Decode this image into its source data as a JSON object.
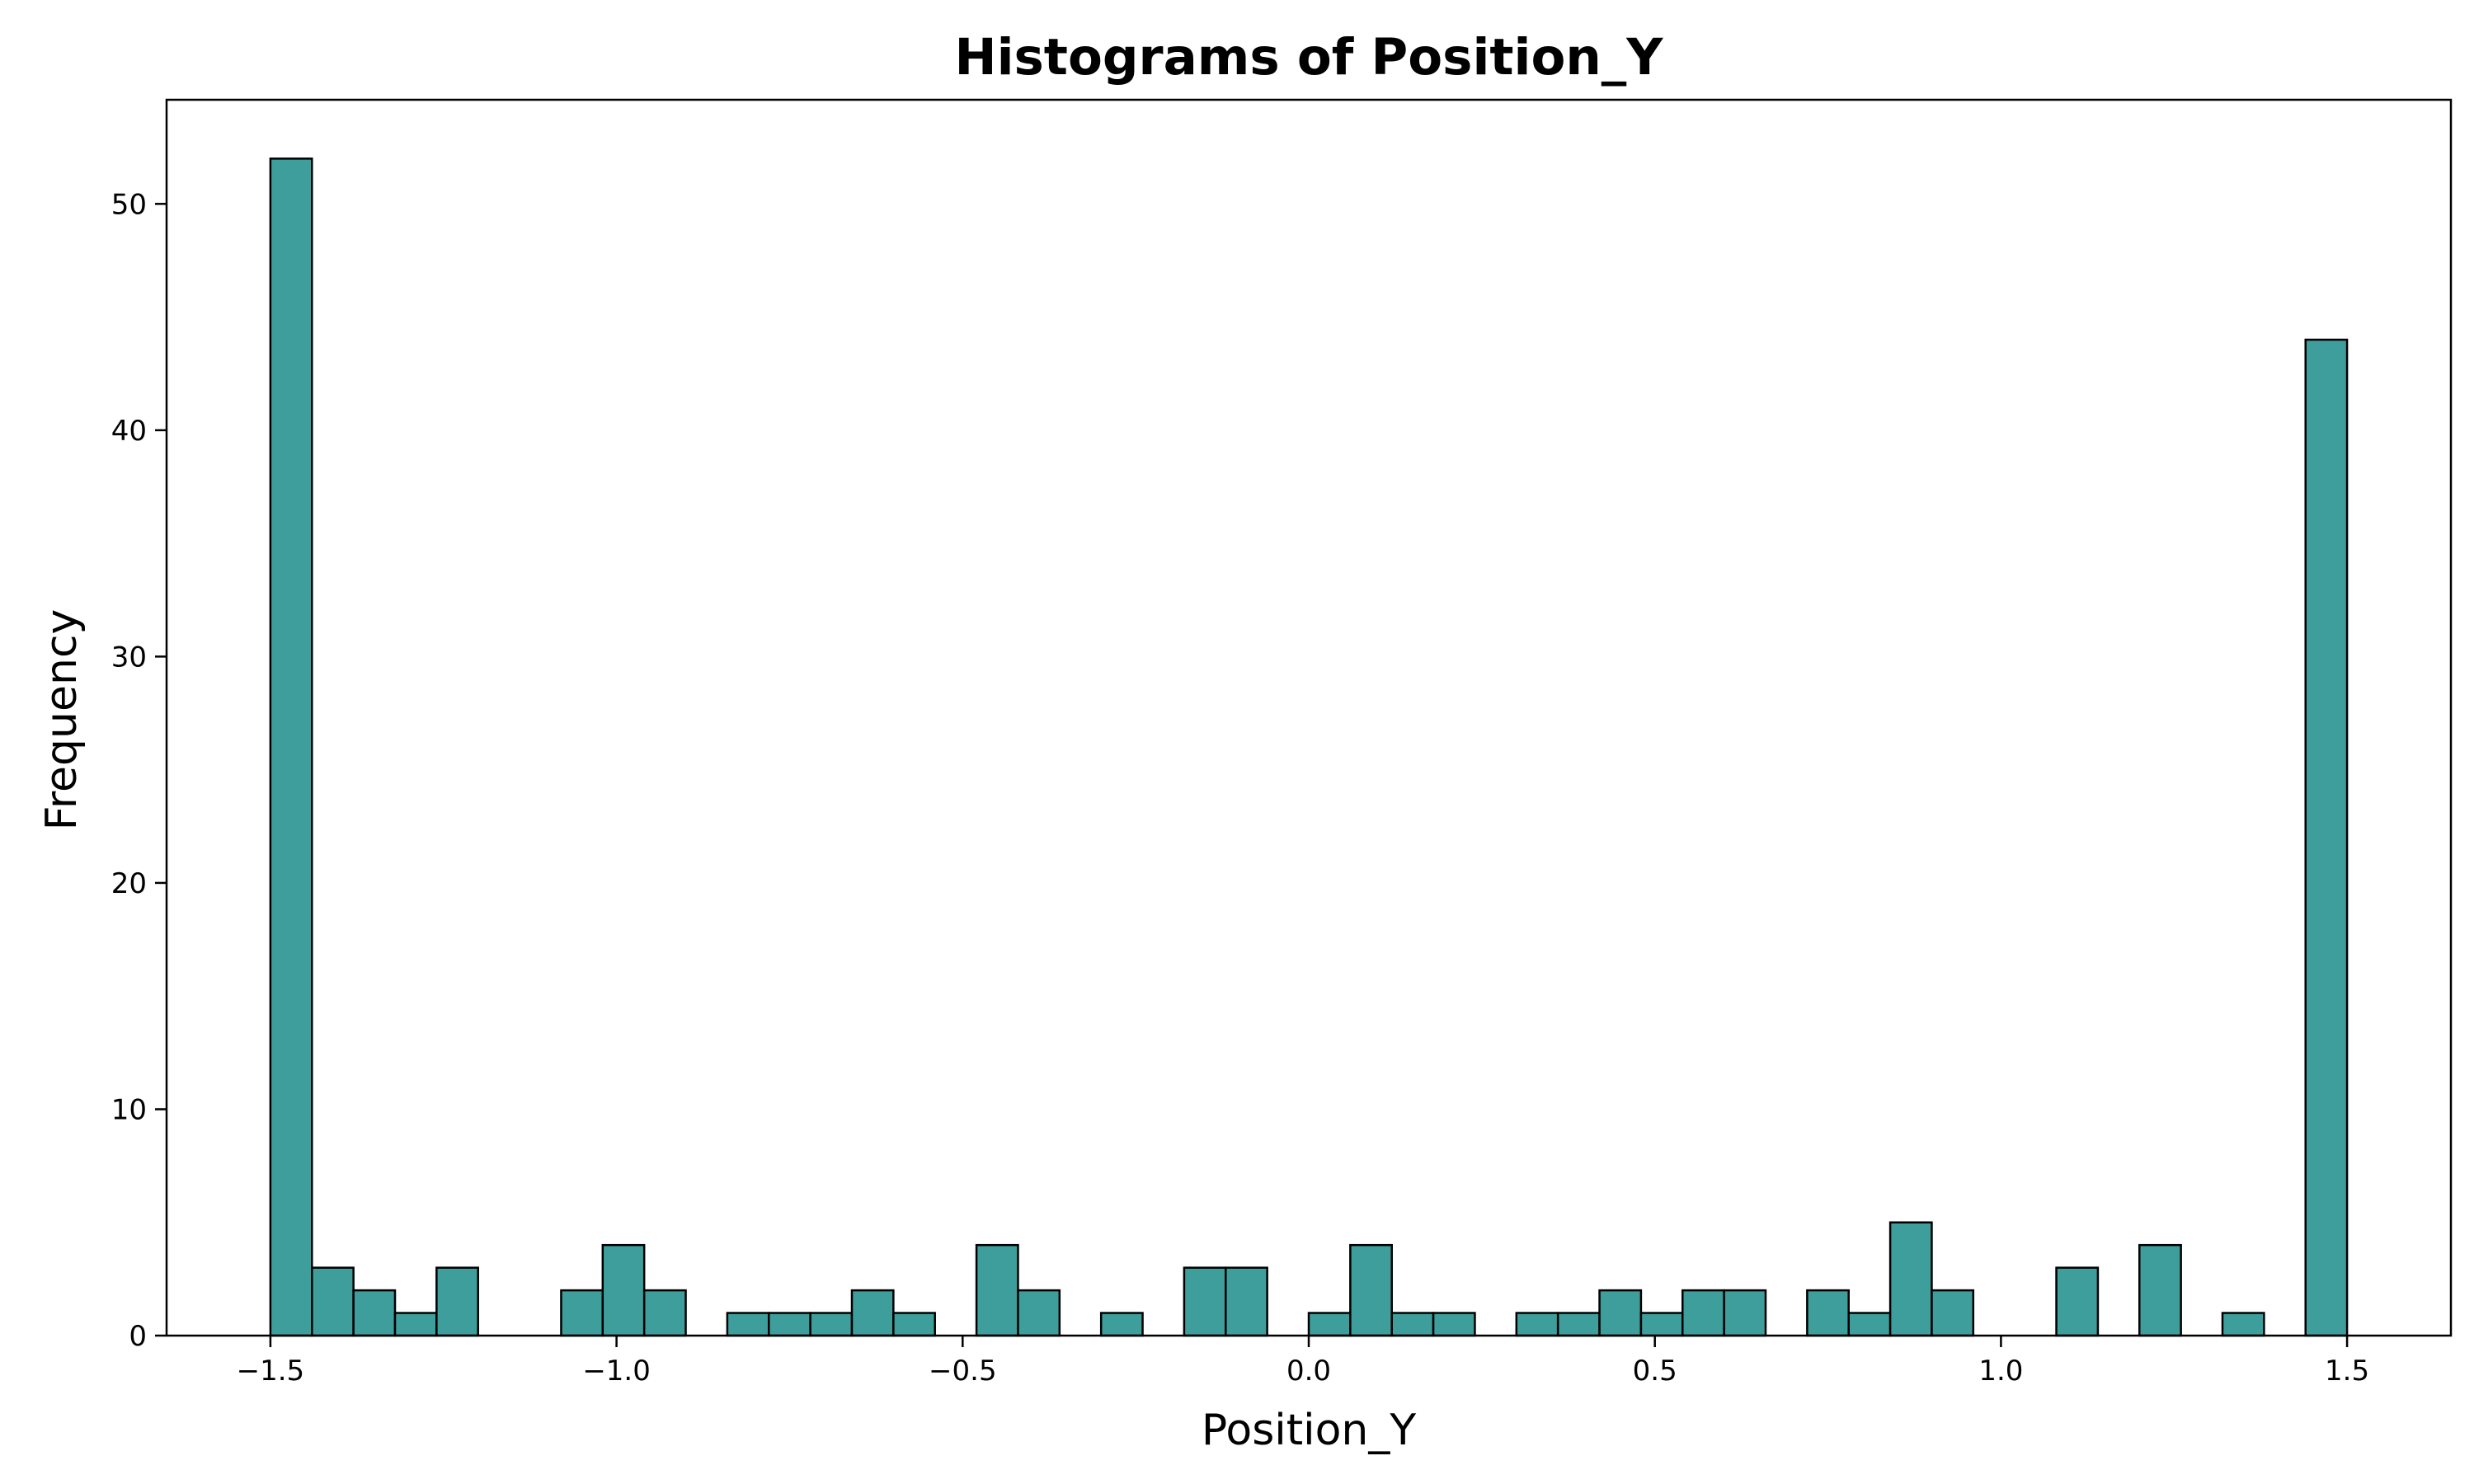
{
  "chart_data": {
    "type": "bar",
    "title": "Histograms of Position_Y",
    "xlabel": "Position_Y",
    "ylabel": "Frequency",
    "xlim": [
      -1.65,
      1.65
    ],
    "ylim": [
      0,
      54.6
    ],
    "bin_width": 0.06,
    "bin_start": -1.5,
    "values": [
      52,
      3,
      2,
      1,
      3,
      0,
      0,
      2,
      4,
      2,
      0,
      1,
      1,
      1,
      2,
      1,
      0,
      4,
      2,
      0,
      1,
      0,
      3,
      3,
      0,
      1,
      4,
      1,
      1,
      0,
      1,
      1,
      2,
      1,
      2,
      2,
      0,
      2,
      1,
      5,
      2,
      0,
      0,
      3,
      0,
      4,
      0,
      1,
      0,
      44
    ],
    "xticks": [
      -1.5,
      -1.0,
      -0.5,
      0.0,
      0.5,
      1.0,
      1.5
    ],
    "xtick_labels": [
      "−1.5",
      "−1.0",
      "−0.5",
      "0.0",
      "0.5",
      "1.0",
      "1.5"
    ],
    "yticks": [
      0,
      10,
      20,
      30,
      40,
      50
    ],
    "ytick_labels": [
      "0",
      "10",
      "20",
      "30",
      "40",
      "50"
    ],
    "grid": false,
    "bar_color": "#3d9e9b",
    "bar_edge_color": "#000000"
  }
}
